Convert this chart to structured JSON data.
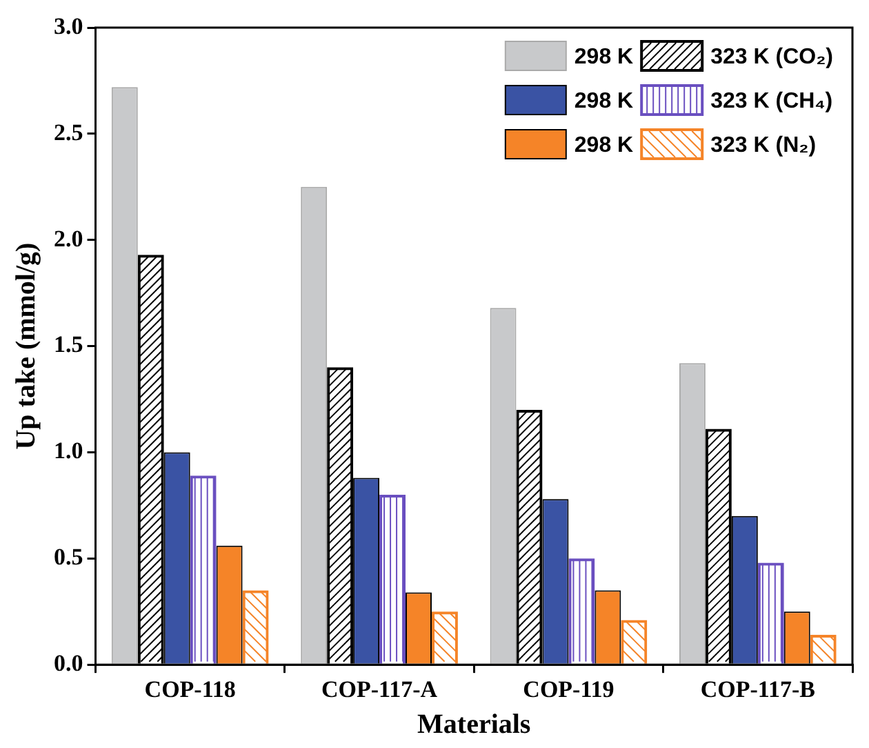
{
  "chart_data": {
    "type": "bar",
    "xlabel": "Materials",
    "ylabel": "Up take (mmol/g)",
    "categories": [
      "COP-118",
      "COP-117-A",
      "COP-119",
      "COP-117-B"
    ],
    "series": [
      {
        "name": "298 K",
        "color": "#c8c9cb",
        "values": [
          2.72,
          2.25,
          1.68,
          1.42
        ]
      },
      {
        "name": "323 K (CO₂)",
        "color": "#000000",
        "values": [
          1.93,
          1.4,
          1.2,
          1.11
        ]
      },
      {
        "name": "298 K",
        "color": "#3a53a4",
        "values": [
          1.0,
          0.88,
          0.78,
          0.7
        ]
      },
      {
        "name": "323 K (CH₄)",
        "color": "#6a4fc0",
        "values": [
          0.89,
          0.8,
          0.5,
          0.48
        ]
      },
      {
        "name": "298 K",
        "color": "#f58428",
        "values": [
          0.56,
          0.34,
          0.35,
          0.25
        ]
      },
      {
        "name": "323 K (N₂)",
        "color": "#f58428",
        "values": [
          0.35,
          0.25,
          0.21,
          0.14
        ]
      }
    ],
    "ylim": [
      0,
      3.0
    ],
    "yticks": [
      {
        "value": 0,
        "label": "0.0"
      },
      {
        "value": 0.5,
        "label": "0.5"
      },
      {
        "value": 1,
        "label": "1.0"
      },
      {
        "value": 1.5,
        "label": "1.5"
      },
      {
        "value": 2,
        "label": "2.0"
      },
      {
        "value": 2.5,
        "label": "2.5"
      },
      {
        "value": 3,
        "label": "3.0"
      }
    ],
    "grid": false,
    "legend": "top right"
  }
}
